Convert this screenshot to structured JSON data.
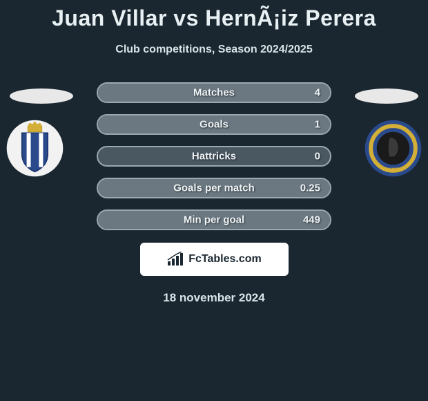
{
  "title": "Juan Villar vs HernÃ¡iz Perera",
  "subtitle": "Club competitions, Season 2024/2025",
  "date": "18 november 2024",
  "fctables_label": "FcTables.com",
  "colors": {
    "background": "#1a2730",
    "bar_bg": "#4a5862",
    "bar_border": "#9aa8b0",
    "bar_fill": "#6b7882",
    "text": "#eef4f6"
  },
  "stats": [
    {
      "label": "Matches",
      "value": "4",
      "fill_pct": 100
    },
    {
      "label": "Goals",
      "value": "1",
      "fill_pct": 100
    },
    {
      "label": "Hattricks",
      "value": "0",
      "fill_pct": 0
    },
    {
      "label": "Goals per match",
      "value": "0.25",
      "fill_pct": 100
    },
    {
      "label": "Min per goal",
      "value": "449",
      "fill_pct": 100
    }
  ],
  "badges": {
    "left": {
      "bg": "#ffffff",
      "shield_fill": "#2a4a8c",
      "shield_stripes": "#ffffff",
      "crown": "#d4af37"
    },
    "right": {
      "bg": "#2a4a8c",
      "ring": "#d4af37",
      "inner": "#1a1a1a"
    }
  }
}
